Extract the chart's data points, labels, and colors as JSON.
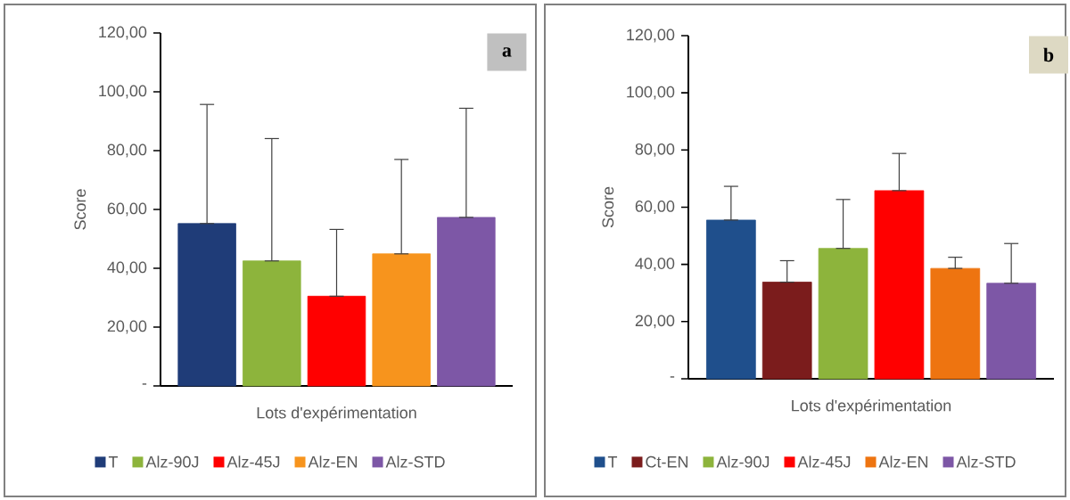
{
  "chart_data": [
    {
      "type": "bar",
      "categories": [
        null
      ],
      "xlabel": "Lots d'expérimentation",
      "ylabel": "Score",
      "annotations": [
        "a"
      ],
      "legend": "bottom",
      "tick_labels": "y",
      "ylim": [
        0,
        120
      ],
      "yticks": [
        {
          "value": 0,
          "label": "-"
        },
        {
          "value": 20,
          "label": "20,00"
        },
        {
          "value": 40,
          "label": "40,00"
        },
        {
          "value": 60,
          "label": "60,00"
        },
        {
          "value": 80,
          "label": "80,00"
        },
        {
          "value": 100,
          "label": "100,00"
        },
        {
          "value": 120,
          "label": "120,00"
        }
      ],
      "series": [
        {
          "name": "T",
          "color": "#1f3c78",
          "values": [
            55.2
          ],
          "errors": [
            [
              55.2,
              95.7
            ]
          ]
        },
        {
          "name": "Alz-90J",
          "color": "#8db43c",
          "values": [
            42.5
          ],
          "errors": [
            [
              42.5,
              84.1
            ]
          ]
        },
        {
          "name": "Alz-45J",
          "color": "#ff0000",
          "values": [
            30.5
          ],
          "errors": [
            [
              30.5,
              53.2
            ]
          ]
        },
        {
          "name": "Alz-EN",
          "color": "#f7941d",
          "values": [
            44.9
          ],
          "errors": [
            [
              44.9,
              77.0
            ]
          ]
        },
        {
          "name": "Alz-STD",
          "color": "#7d57a6",
          "values": [
            57.3
          ],
          "errors": [
            [
              57.3,
              94.4
            ]
          ]
        }
      ]
    },
    {
      "type": "bar",
      "categories": [
        null
      ],
      "xlabel": "Lots d'expérimentation",
      "ylabel": "Score",
      "annotations": [
        "b"
      ],
      "legend": "bottom",
      "tick_labels": "y",
      "ylim": [
        0,
        120
      ],
      "yticks": [
        {
          "value": 0,
          "label": "-"
        },
        {
          "value": 20,
          "label": "20,00"
        },
        {
          "value": 40,
          "label": "40,00"
        },
        {
          "value": 60,
          "label": "60,00"
        },
        {
          "value": 80,
          "label": "80,00"
        },
        {
          "value": 100,
          "label": "100,00"
        },
        {
          "value": 120,
          "label": "120,00"
        }
      ],
      "series": [
        {
          "name": "T",
          "color": "#1f4f8c",
          "values": [
            55.5
          ],
          "errors": [
            [
              55.5,
              67.3
            ]
          ]
        },
        {
          "name": "Ct-EN",
          "color": "#7b1c1c",
          "values": [
            33.8
          ],
          "errors": [
            [
              33.8,
              41.3
            ]
          ]
        },
        {
          "name": "Alz-90J",
          "color": "#8db43c",
          "values": [
            45.6
          ],
          "errors": [
            [
              45.6,
              62.7
            ]
          ]
        },
        {
          "name": "Alz-45J",
          "color": "#ff0000",
          "values": [
            65.8
          ],
          "errors": [
            [
              65.8,
              78.8
            ]
          ]
        },
        {
          "name": "Alz-EN",
          "color": "#ee7410",
          "values": [
            38.6
          ],
          "errors": [
            [
              38.6,
              42.5
            ]
          ]
        },
        {
          "name": "Alz-STD",
          "color": "#7d57a6",
          "values": [
            33.4
          ],
          "errors": [
            [
              33.4,
              47.3
            ]
          ]
        }
      ]
    }
  ]
}
